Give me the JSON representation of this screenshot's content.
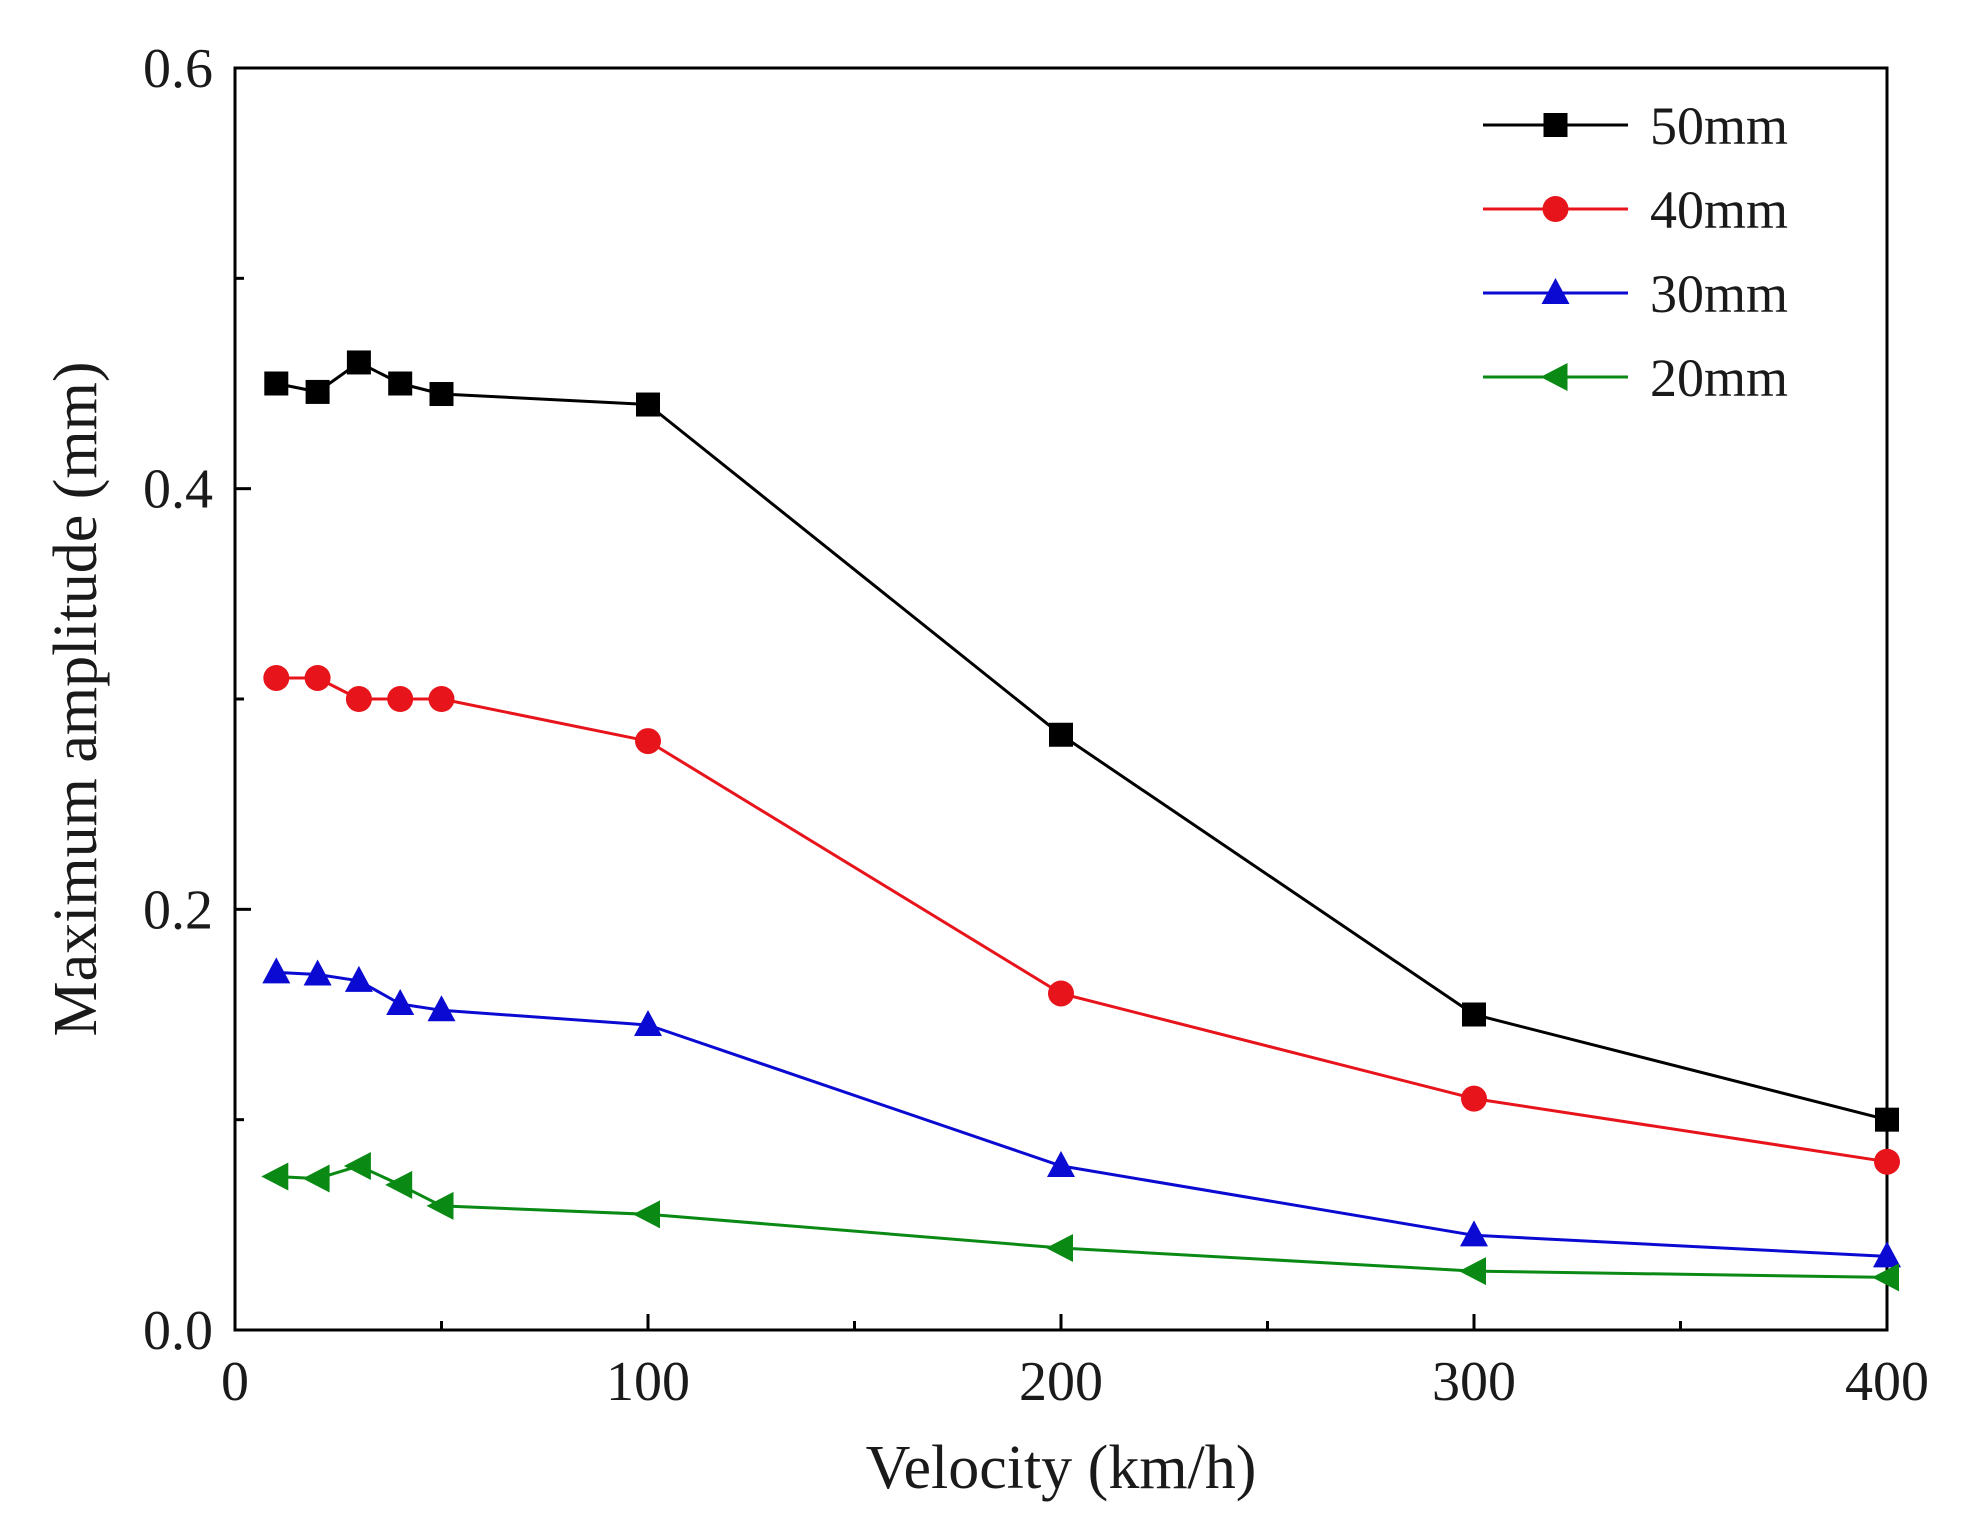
{
  "chart_data": {
    "type": "line",
    "title": "",
    "xlabel": "Velocity (km/h)",
    "ylabel": "Maximum amplitude (mm)",
    "xlim": [
      0,
      400
    ],
    "ylim": [
      0.0,
      0.6
    ],
    "xticks": [
      0,
      100,
      200,
      300,
      400
    ],
    "xtick_labels": [
      "0",
      "100",
      "200",
      "300",
      "400"
    ],
    "yticks": [
      0.0,
      0.2,
      0.4,
      0.6
    ],
    "ytick_labels": [
      "0.0",
      "0.2",
      "0.4",
      "0.6"
    ],
    "grid": false,
    "legend_position": "top-right",
    "x": [
      10,
      20,
      30,
      40,
      50,
      100,
      200,
      300,
      400
    ],
    "series": [
      {
        "name": "50mm",
        "color": "#000000",
        "marker": "square",
        "values": [
          0.45,
          0.446,
          0.46,
          0.45,
          0.445,
          0.44,
          0.283,
          0.15,
          0.1
        ]
      },
      {
        "name": "40mm",
        "color": "#e8141b",
        "marker": "circle",
        "values": [
          0.31,
          0.31,
          0.3,
          0.3,
          0.3,
          0.28,
          0.16,
          0.11,
          0.08
        ]
      },
      {
        "name": "30mm",
        "color": "#0a0ad2",
        "marker": "triangle-up",
        "values": [
          0.17,
          0.169,
          0.166,
          0.155,
          0.152,
          0.145,
          0.078,
          0.045,
          0.035
        ]
      },
      {
        "name": "20mm",
        "color": "#0a8a14",
        "marker": "triangle-left",
        "values": [
          0.073,
          0.072,
          0.078,
          0.069,
          0.059,
          0.055,
          0.039,
          0.028,
          0.025
        ]
      }
    ]
  }
}
